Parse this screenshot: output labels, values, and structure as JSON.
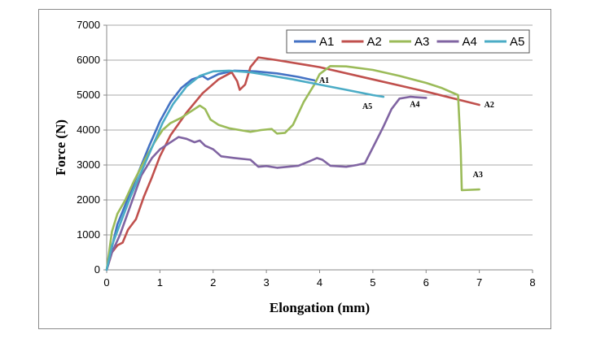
{
  "chart_data": {
    "type": "line",
    "xlabel": "Elongation (mm)",
    "ylabel": "Force (N)",
    "xlim": [
      0,
      8
    ],
    "ylim": [
      0,
      7000
    ],
    "xticks": [
      "0",
      "1",
      "2",
      "3",
      "4",
      "5",
      "6",
      "7",
      "8"
    ],
    "yticks": [
      "0",
      "1000",
      "2000",
      "3000",
      "4000",
      "5000",
      "6000",
      "7000"
    ],
    "grid": "horizontal",
    "legend_position": "top-right",
    "series": [
      {
        "name": "A1",
        "color": "#4472C4",
        "end_label": "A1",
        "points": [
          [
            0,
            0
          ],
          [
            0.1,
            650
          ],
          [
            0.2,
            1300
          ],
          [
            0.4,
            2050
          ],
          [
            0.6,
            2800
          ],
          [
            0.8,
            3550
          ],
          [
            1.0,
            4250
          ],
          [
            1.2,
            4800
          ],
          [
            1.4,
            5200
          ],
          [
            1.6,
            5450
          ],
          [
            1.8,
            5550
          ],
          [
            1.9,
            5450
          ],
          [
            2.1,
            5600
          ],
          [
            2.4,
            5700
          ],
          [
            2.8,
            5680
          ],
          [
            3.2,
            5620
          ],
          [
            3.6,
            5520
          ],
          [
            3.9,
            5420
          ]
        ]
      },
      {
        "name": "A2",
        "color": "#C0504D",
        "end_label": "A2",
        "points": [
          [
            0,
            0
          ],
          [
            0.1,
            500
          ],
          [
            0.2,
            700
          ],
          [
            0.3,
            780
          ],
          [
            0.4,
            1150
          ],
          [
            0.55,
            1450
          ],
          [
            0.7,
            2100
          ],
          [
            0.85,
            2650
          ],
          [
            1.0,
            3250
          ],
          [
            1.2,
            3850
          ],
          [
            1.5,
            4500
          ],
          [
            1.8,
            5050
          ],
          [
            2.1,
            5450
          ],
          [
            2.35,
            5650
          ],
          [
            2.45,
            5400
          ],
          [
            2.5,
            5150
          ],
          [
            2.6,
            5300
          ],
          [
            2.7,
            5800
          ],
          [
            2.85,
            6080
          ],
          [
            3.2,
            6000
          ],
          [
            4.0,
            5800
          ],
          [
            5.0,
            5450
          ],
          [
            6.0,
            5100
          ],
          [
            7.0,
            4720
          ]
        ]
      },
      {
        "name": "A3",
        "color": "#9BBB59",
        "end_label": "A3",
        "points": [
          [
            0,
            0
          ],
          [
            0.1,
            1100
          ],
          [
            0.2,
            1600
          ],
          [
            0.35,
            2000
          ],
          [
            0.5,
            2500
          ],
          [
            0.7,
            3100
          ],
          [
            0.9,
            3650
          ],
          [
            1.05,
            4000
          ],
          [
            1.2,
            4200
          ],
          [
            1.4,
            4350
          ],
          [
            1.6,
            4550
          ],
          [
            1.75,
            4700
          ],
          [
            1.85,
            4600
          ],
          [
            1.95,
            4300
          ],
          [
            2.1,
            4150
          ],
          [
            2.3,
            4050
          ],
          [
            2.5,
            4000
          ],
          [
            2.7,
            3950
          ],
          [
            2.9,
            4000
          ],
          [
            3.1,
            4030
          ],
          [
            3.2,
            3900
          ],
          [
            3.35,
            3920
          ],
          [
            3.5,
            4150
          ],
          [
            3.7,
            4800
          ],
          [
            3.9,
            5300
          ],
          [
            4.0,
            5600
          ],
          [
            4.2,
            5830
          ],
          [
            4.5,
            5820
          ],
          [
            5.0,
            5720
          ],
          [
            5.5,
            5550
          ],
          [
            6.0,
            5350
          ],
          [
            6.3,
            5200
          ],
          [
            6.6,
            5000
          ],
          [
            6.65,
            3500
          ],
          [
            6.67,
            2280
          ],
          [
            7.0,
            2300
          ]
        ]
      },
      {
        "name": "A4",
        "color": "#8064A2",
        "end_label": "A4",
        "points": [
          [
            0,
            0
          ],
          [
            0.1,
            500
          ],
          [
            0.25,
            1000
          ],
          [
            0.45,
            1850
          ],
          [
            0.65,
            2700
          ],
          [
            0.85,
            3200
          ],
          [
            1.0,
            3450
          ],
          [
            1.15,
            3600
          ],
          [
            1.35,
            3800
          ],
          [
            1.5,
            3750
          ],
          [
            1.65,
            3650
          ],
          [
            1.75,
            3700
          ],
          [
            1.85,
            3550
          ],
          [
            2.0,
            3450
          ],
          [
            2.15,
            3250
          ],
          [
            2.4,
            3200
          ],
          [
            2.7,
            3150
          ],
          [
            2.85,
            2950
          ],
          [
            3.0,
            2970
          ],
          [
            3.2,
            2920
          ],
          [
            3.4,
            2950
          ],
          [
            3.6,
            2980
          ],
          [
            3.8,
            3100
          ],
          [
            3.95,
            3200
          ],
          [
            4.05,
            3150
          ],
          [
            4.2,
            2980
          ],
          [
            4.5,
            2950
          ],
          [
            4.7,
            3000
          ],
          [
            4.85,
            3050
          ],
          [
            5.0,
            3500
          ],
          [
            5.2,
            4100
          ],
          [
            5.35,
            4600
          ],
          [
            5.5,
            4900
          ],
          [
            5.7,
            4950
          ],
          [
            6.0,
            4920
          ]
        ]
      },
      {
        "name": "A5",
        "color": "#4BACC6",
        "end_label": "A5",
        "points": [
          [
            0,
            0
          ],
          [
            0.1,
            700
          ],
          [
            0.25,
            1300
          ],
          [
            0.45,
            2100
          ],
          [
            0.65,
            2800
          ],
          [
            0.85,
            3500
          ],
          [
            1.05,
            4200
          ],
          [
            1.25,
            4750
          ],
          [
            1.5,
            5250
          ],
          [
            1.75,
            5550
          ],
          [
            2.0,
            5680
          ],
          [
            2.3,
            5700
          ],
          [
            2.7,
            5650
          ],
          [
            3.0,
            5580
          ],
          [
            3.5,
            5450
          ],
          [
            4.0,
            5300
          ],
          [
            4.5,
            5150
          ],
          [
            5.0,
            5000
          ],
          [
            5.2,
            4950
          ]
        ]
      }
    ]
  }
}
